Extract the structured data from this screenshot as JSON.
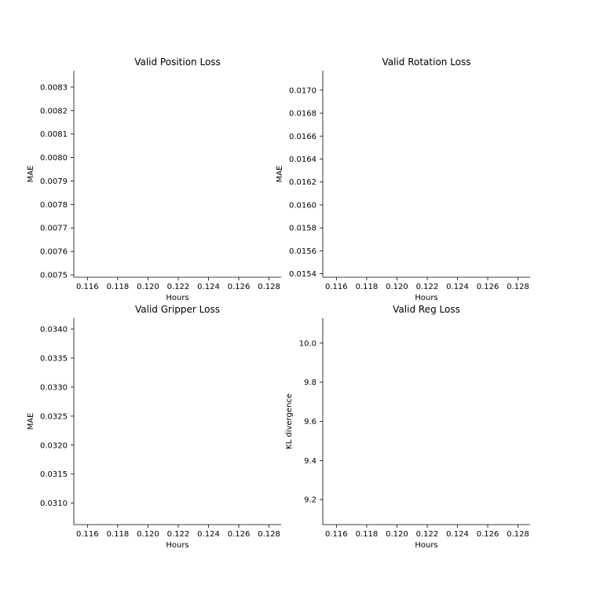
{
  "chart_data": [
    {
      "type": "line",
      "title": "Valid Position Loss",
      "xlabel": "Hours",
      "ylabel": "MAE",
      "x_ticks": [
        "0.116",
        "0.118",
        "0.120",
        "0.122",
        "0.124",
        "0.126",
        "0.128"
      ],
      "y_ticks": [
        "0.0075",
        "0.0076",
        "0.0077",
        "0.0078",
        "0.0079",
        "0.0080",
        "0.0081",
        "0.0082",
        "0.0083"
      ],
      "xlim": [
        0.1151,
        0.1288
      ],
      "ylim": [
        0.00749,
        0.00837
      ],
      "grid": false,
      "series": []
    },
    {
      "type": "line",
      "title": "Valid Rotation Loss",
      "xlabel": "Hours",
      "ylabel": "MAE",
      "x_ticks": [
        "0.116",
        "0.118",
        "0.120",
        "0.122",
        "0.124",
        "0.126",
        "0.128"
      ],
      "y_ticks": [
        "0.0154",
        "0.0156",
        "0.0158",
        "0.0160",
        "0.0162",
        "0.0164",
        "0.0166",
        "0.0168",
        "0.0170"
      ],
      "xlim": [
        0.1151,
        0.1288
      ],
      "ylim": [
        0.01537,
        0.01717
      ],
      "grid": false,
      "series": []
    },
    {
      "type": "line",
      "title": "Valid Gripper Loss",
      "xlabel": "Hours",
      "ylabel": "MAE",
      "x_ticks": [
        "0.116",
        "0.118",
        "0.120",
        "0.122",
        "0.124",
        "0.126",
        "0.128"
      ],
      "y_ticks": [
        "0.0310",
        "0.0315",
        "0.0320",
        "0.0325",
        "0.0330",
        "0.0335",
        "0.0340"
      ],
      "xlim": [
        0.1151,
        0.1288
      ],
      "ylim": [
        0.03063,
        0.03419
      ],
      "grid": false,
      "series": []
    },
    {
      "type": "line",
      "title": "Valid Reg Loss",
      "xlabel": "Hours",
      "ylabel": "KL divergence",
      "x_ticks": [
        "0.116",
        "0.118",
        "0.120",
        "0.122",
        "0.124",
        "0.126",
        "0.128"
      ],
      "y_ticks": [
        "9.2",
        "9.4",
        "9.6",
        "9.8",
        "10.0"
      ],
      "xlim": [
        0.1151,
        0.1288
      ],
      "ylim": [
        9.072,
        10.128
      ],
      "grid": false,
      "series": []
    }
  ]
}
